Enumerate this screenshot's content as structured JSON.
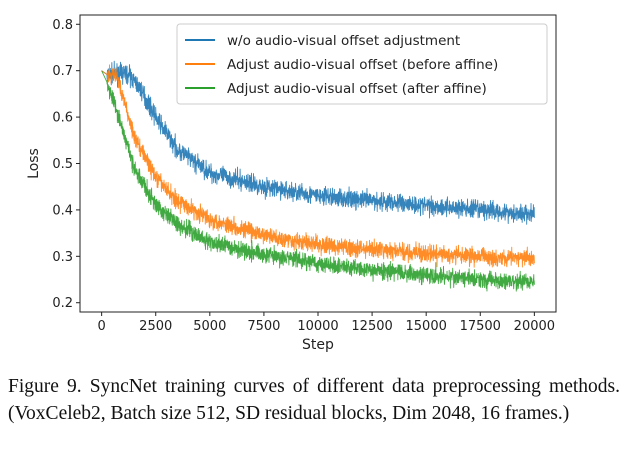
{
  "chart_data": {
    "type": "line",
    "title": "",
    "xlabel": "Step",
    "ylabel": "Loss",
    "xlim": [
      -1000,
      21000
    ],
    "ylim": [
      0.18,
      0.82
    ],
    "xticks": [
      0,
      2500,
      5000,
      7500,
      10000,
      12500,
      15000,
      17500,
      20000
    ],
    "yticks": [
      0.2,
      0.3,
      0.4,
      0.5,
      0.6,
      0.7,
      0.8
    ],
    "legend_position": "top-right",
    "grid": false,
    "series": [
      {
        "name": "w/o audio-visual offset adjustment",
        "color": "#1f77b4",
        "x": [
          0,
          300,
          1000,
          1300,
          1800,
          2500,
          3500,
          5000,
          7500,
          10000,
          12500,
          15000,
          17500,
          20000
        ],
        "y": [
          0.7,
          0.69,
          0.695,
          0.69,
          0.66,
          0.6,
          0.53,
          0.48,
          0.45,
          0.43,
          0.42,
          0.41,
          0.4,
          0.39
        ],
        "noise": 0.014
      },
      {
        "name": "Adjust audio-visual offset (before affine)",
        "color": "#ff7f0e",
        "x": [
          0,
          300,
          700,
          1000,
          1500,
          2500,
          3500,
          5000,
          7500,
          10000,
          12500,
          15000,
          17500,
          20000
        ],
        "y": [
          0.7,
          0.69,
          0.69,
          0.64,
          0.56,
          0.47,
          0.42,
          0.38,
          0.345,
          0.325,
          0.315,
          0.305,
          0.3,
          0.295
        ],
        "noise": 0.013
      },
      {
        "name": "Adjust audio-visual offset (after affine)",
        "color": "#2ca02c",
        "x": [
          0,
          300,
          600,
          1000,
          1500,
          2500,
          3500,
          5000,
          7500,
          10000,
          12500,
          15000,
          17500,
          20000
        ],
        "y": [
          0.7,
          0.67,
          0.63,
          0.57,
          0.49,
          0.41,
          0.37,
          0.33,
          0.305,
          0.285,
          0.27,
          0.26,
          0.25,
          0.245
        ],
        "noise": 0.013
      }
    ]
  },
  "caption": "Figure 9. SyncNet training curves of different data preprocessing methods. (VoxCeleb2, Batch size 512, SD residual blocks, Dim 2048, 16 frames.)"
}
